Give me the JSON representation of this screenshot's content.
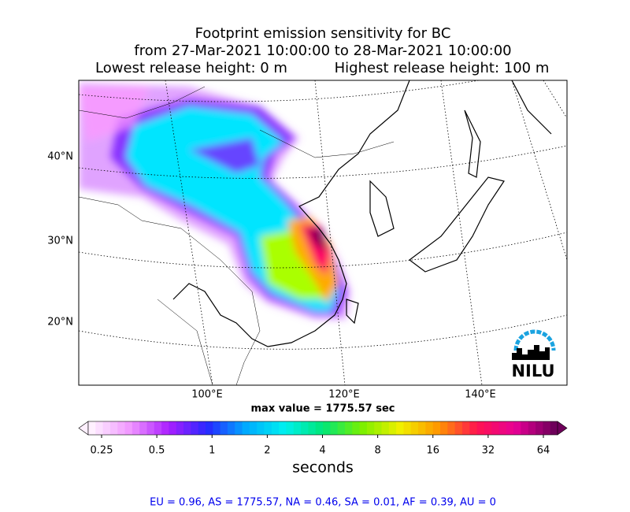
{
  "title": [
    "Footprint emission sensitivity for BC",
    "from 27-Mar-2021 10:00:00 to 28-Mar-2021 10:00:00",
    "Lowest release height: 0 m",
    "Highest release height: 100 m"
  ],
  "map": {
    "lat_labels": [
      "40°N",
      "30°N",
      "20°N"
    ],
    "lon_labels": [
      "100°E",
      "120°E",
      "140°E"
    ],
    "logo": "NILU"
  },
  "max_value": "max value = 1775.57 sec",
  "colorbar": {
    "ticks": [
      "0.25",
      "0.5",
      "1",
      "2",
      "4",
      "8",
      "16",
      "32",
      "64"
    ],
    "label": "seconds"
  },
  "footer": "EU = 0.96,  AS = 1775.57,  NA = 0.46,  SA = 0.01,  AF = 0.39,  AU = 0"
}
